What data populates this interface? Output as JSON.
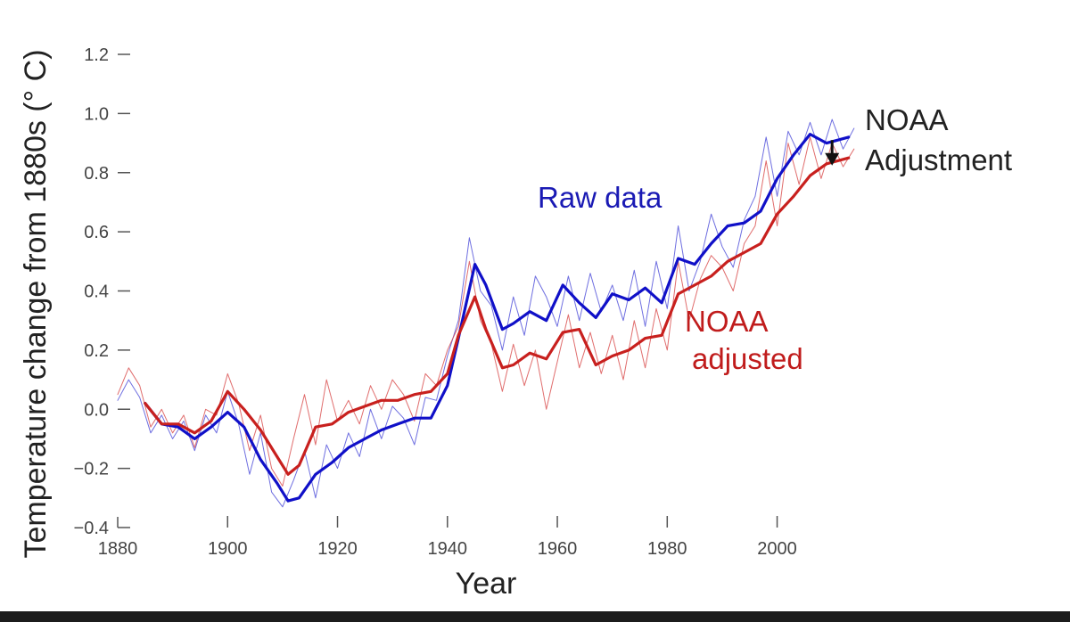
{
  "chart_data": {
    "type": "line",
    "title": "",
    "xlabel": "Year",
    "ylabel": "Temperature change from 1880s (° C)",
    "xlim": [
      1880,
      2015
    ],
    "ylim": [
      -0.4,
      1.2
    ],
    "x_ticks": [
      1880,
      1900,
      1920,
      1940,
      1960,
      1980,
      2000
    ],
    "x_tick_labels": [
      "1880",
      "1900",
      "1920",
      "1940",
      "1960",
      "1980",
      "2000"
    ],
    "y_ticks": [
      -0.4,
      -0.2,
      0.0,
      0.2,
      0.4,
      0.6,
      0.8,
      1.0,
      1.2
    ],
    "y_tick_labels": [
      "−0.4",
      "−0.2",
      "0.0",
      "0.2",
      "0.4",
      "0.6",
      "0.8",
      "1.0",
      "1.2"
    ],
    "series": [
      {
        "name": "Raw data",
        "kind": "smoothed",
        "color": "#1010c8",
        "x": [
          1885,
          1888,
          1891,
          1894,
          1897,
          1900,
          1903,
          1906,
          1909,
          1911,
          1913,
          1916,
          1919,
          1922,
          1925,
          1928,
          1931,
          1934,
          1937,
          1940,
          1942,
          1945,
          1947,
          1950,
          1952,
          1955,
          1958,
          1961,
          1964,
          1967,
          1970,
          1973,
          1976,
          1979,
          1982,
          1985,
          1988,
          1991,
          1994,
          1997,
          2000,
          2003,
          2006,
          2009,
          2013
        ],
        "y": [
          0.02,
          -0.05,
          -0.06,
          -0.1,
          -0.06,
          -0.01,
          -0.06,
          -0.17,
          -0.25,
          -0.31,
          -0.3,
          -0.22,
          -0.18,
          -0.13,
          -0.1,
          -0.07,
          -0.05,
          -0.03,
          -0.03,
          0.08,
          0.24,
          0.49,
          0.42,
          0.27,
          0.29,
          0.33,
          0.3,
          0.42,
          0.36,
          0.31,
          0.39,
          0.37,
          0.41,
          0.36,
          0.51,
          0.49,
          0.56,
          0.62,
          0.63,
          0.67,
          0.78,
          0.86,
          0.93,
          0.9,
          0.92
        ]
      },
      {
        "name": "NOAA adjusted",
        "kind": "smoothed",
        "color": "#c8201e",
        "x": [
          1885,
          1888,
          1891,
          1894,
          1897,
          1900,
          1903,
          1906,
          1909,
          1911,
          1913,
          1916,
          1919,
          1922,
          1925,
          1928,
          1931,
          1934,
          1937,
          1940,
          1942,
          1945,
          1947,
          1950,
          1952,
          1955,
          1958,
          1961,
          1964,
          1967,
          1970,
          1973,
          1976,
          1979,
          1982,
          1985,
          1988,
          1991,
          1994,
          1997,
          2000,
          2003,
          2006,
          2009,
          2013
        ],
        "y": [
          0.02,
          -0.05,
          -0.05,
          -0.08,
          -0.04,
          0.06,
          0.0,
          -0.07,
          -0.16,
          -0.22,
          -0.19,
          -0.06,
          -0.05,
          -0.01,
          0.01,
          0.03,
          0.03,
          0.05,
          0.06,
          0.12,
          0.25,
          0.38,
          0.27,
          0.14,
          0.15,
          0.19,
          0.17,
          0.26,
          0.27,
          0.15,
          0.18,
          0.2,
          0.24,
          0.25,
          0.39,
          0.42,
          0.45,
          0.5,
          0.53,
          0.56,
          0.66,
          0.72,
          0.79,
          0.83,
          0.85
        ]
      },
      {
        "name": "Raw data (annual)",
        "kind": "annual",
        "color": "#4a4ad8",
        "x": [
          1880,
          1882,
          1884,
          1886,
          1888,
          1890,
          1892,
          1894,
          1896,
          1898,
          1900,
          1902,
          1904,
          1906,
          1908,
          1910,
          1912,
          1914,
          1916,
          1918,
          1920,
          1922,
          1924,
          1926,
          1928,
          1930,
          1932,
          1934,
          1936,
          1938,
          1940,
          1942,
          1944,
          1946,
          1948,
          1950,
          1952,
          1954,
          1956,
          1958,
          1960,
          1962,
          1964,
          1966,
          1968,
          1970,
          1972,
          1974,
          1976,
          1978,
          1980,
          1982,
          1984,
          1986,
          1988,
          1990,
          1992,
          1994,
          1996,
          1998,
          2000,
          2002,
          2004,
          2006,
          2008,
          2010,
          2012,
          2014
        ],
        "y": [
          0.03,
          0.1,
          0.04,
          -0.08,
          -0.02,
          -0.1,
          -0.04,
          -0.14,
          -0.02,
          -0.08,
          0.06,
          -0.05,
          -0.22,
          -0.08,
          -0.28,
          -0.33,
          -0.24,
          -0.14,
          -0.3,
          -0.12,
          -0.2,
          -0.08,
          -0.16,
          0.0,
          -0.1,
          0.01,
          -0.03,
          -0.12,
          0.04,
          0.03,
          0.18,
          0.3,
          0.58,
          0.4,
          0.35,
          0.2,
          0.38,
          0.25,
          0.45,
          0.38,
          0.28,
          0.45,
          0.3,
          0.46,
          0.33,
          0.42,
          0.3,
          0.47,
          0.28,
          0.5,
          0.34,
          0.62,
          0.4,
          0.5,
          0.66,
          0.55,
          0.48,
          0.64,
          0.72,
          0.92,
          0.72,
          0.94,
          0.86,
          0.97,
          0.86,
          0.98,
          0.88,
          0.95
        ]
      },
      {
        "name": "NOAA adjusted (annual)",
        "kind": "annual",
        "color": "#d84848",
        "x": [
          1880,
          1882,
          1884,
          1886,
          1888,
          1890,
          1892,
          1894,
          1896,
          1898,
          1900,
          1902,
          1904,
          1906,
          1908,
          1910,
          1912,
          1914,
          1916,
          1918,
          1920,
          1922,
          1924,
          1926,
          1928,
          1930,
          1932,
          1934,
          1936,
          1938,
          1940,
          1942,
          1944,
          1946,
          1948,
          1950,
          1952,
          1954,
          1956,
          1958,
          1960,
          1962,
          1964,
          1966,
          1968,
          1970,
          1972,
          1974,
          1976,
          1978,
          1980,
          1982,
          1984,
          1986,
          1988,
          1990,
          1992,
          1994,
          1996,
          1998,
          2000,
          2002,
          2004,
          2006,
          2008,
          2010,
          2012,
          2014
        ],
        "y": [
          0.05,
          0.14,
          0.08,
          -0.06,
          0.0,
          -0.08,
          -0.02,
          -0.13,
          0.0,
          -0.02,
          0.12,
          0.02,
          -0.14,
          -0.02,
          -0.2,
          -0.26,
          -0.1,
          0.05,
          -0.12,
          0.1,
          -0.04,
          0.03,
          -0.05,
          0.08,
          0.0,
          0.1,
          0.05,
          -0.04,
          0.12,
          0.08,
          0.2,
          0.28,
          0.5,
          0.3,
          0.22,
          0.06,
          0.22,
          0.08,
          0.2,
          0.0,
          0.16,
          0.32,
          0.14,
          0.26,
          0.12,
          0.25,
          0.1,
          0.3,
          0.14,
          0.34,
          0.2,
          0.5,
          0.3,
          0.44,
          0.52,
          0.48,
          0.4,
          0.56,
          0.62,
          0.84,
          0.62,
          0.9,
          0.76,
          0.92,
          0.78,
          0.9,
          0.82,
          0.88
        ]
      }
    ],
    "annotations": [
      {
        "name": "raw-data-label",
        "text": "Raw data",
        "color": "#1a1ab4"
      },
      {
        "name": "noaa-adjusted-label-line1",
        "text": "NOAA",
        "color": "#c01c1c"
      },
      {
        "name": "noaa-adjusted-label-line2",
        "text": "adjusted",
        "color": "#c01c1c"
      },
      {
        "name": "noaa-adjustment-label-line1",
        "text": "NOAA",
        "color": "#222222"
      },
      {
        "name": "noaa-adjustment-label-line2",
        "text": "Adjustment",
        "color": "#222222"
      }
    ],
    "adjustment_arrow": {
      "year": 2010,
      "from": 0.91,
      "to": 0.83
    },
    "grid": false
  }
}
